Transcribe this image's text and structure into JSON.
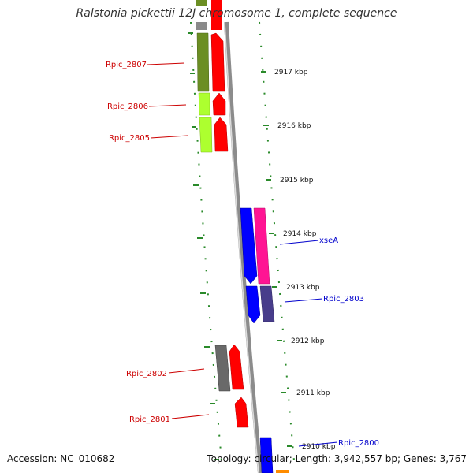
{
  "title": "Ralstonia pickettii 12J chromosome 1, complete sequence",
  "footer": {
    "accession": "Accession: NC_010682",
    "topology": "Topology: circular; Length: 3,942,557 bp; Genes: 3,767"
  },
  "colors": {
    "backbone": "#8c8c8c",
    "tick": "#2a8a2a",
    "gene_label_left": "#cc0000",
    "gene_label_right": "#0000cc",
    "red": "#ff0000",
    "olive": "#6b8e23",
    "lime": "#adff2f",
    "blue": "#0000ff",
    "magenta": "#ff1493",
    "slate": "#483d8b",
    "gray": "#696969",
    "orange": "#ff8c00"
  },
  "scale_labels": [
    "2917 kbp",
    "2916 kbp",
    "2915 kbp",
    "2914 kbp",
    "2913 kbp",
    "2912 kbp",
    "2911 kbp",
    "2910 kbp"
  ],
  "gene_labels": [
    {
      "text": "Rpic_2807",
      "side": "left"
    },
    {
      "text": "Rpic_2806",
      "side": "left"
    },
    {
      "text": "Rpic_2805",
      "side": "left"
    },
    {
      "text": "xseA",
      "side": "right"
    },
    {
      "text": "Rpic_2803",
      "side": "right"
    },
    {
      "text": "Rpic_2802",
      "side": "left"
    },
    {
      "text": "Rpic_2801",
      "side": "left"
    },
    {
      "text": "Rpic_2800",
      "side": "right"
    }
  ]
}
